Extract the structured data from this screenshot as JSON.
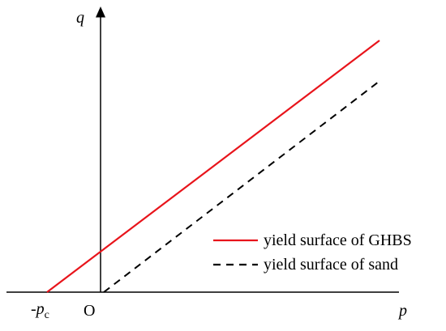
{
  "axes": {
    "y_label": "q",
    "x_label": "p",
    "origin_label": "O",
    "intercept_label": "-p",
    "intercept_subscript": "c"
  },
  "legend": [
    {
      "label": "yield surface of GHBS",
      "color": "#e8141b",
      "dashed": false
    },
    {
      "label": "yield surface of sand",
      "color": "#000000",
      "dashed": true
    }
  ]
}
